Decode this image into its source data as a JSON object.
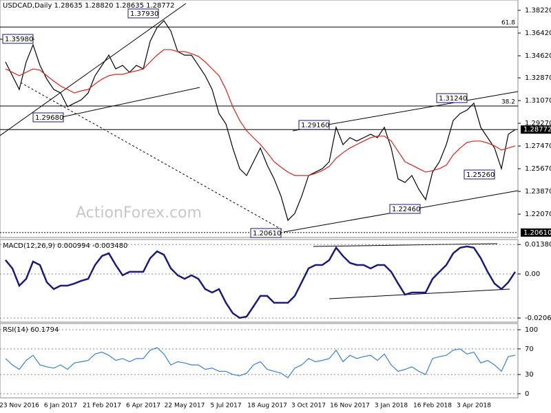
{
  "chart_data": [
    {
      "type": "line",
      "title": "USDCAD,Daily 1.28635 1.28820 1.28635 1.28772",
      "watermark": "ActionForex.com",
      "ylim": [
        1.2022,
        1.3904
      ],
      "yticks": [
        {
          "value": 1.3822,
          "label": "1.38220"
        },
        {
          "value": 1.3642,
          "label": "1.36420"
        },
        {
          "value": 1.3462,
          "label": "1.34620"
        },
        {
          "value": 1.3287,
          "label": "1.32870"
        },
        {
          "value": 1.3107,
          "label": "1.31070"
        },
        {
          "value": 1.2927,
          "label": "1.29270"
        },
        {
          "value": 1.2747,
          "label": "1.27470"
        },
        {
          "value": 1.2567,
          "label": "1.25670"
        },
        {
          "value": 1.2387,
          "label": "1.23870"
        },
        {
          "value": 1.2207,
          "label": "1.22070"
        }
      ],
      "levels": [
        {
          "value": 1.369,
          "label": "61.8"
        },
        {
          "value": 1.3064,
          "label": "38.2"
        }
      ],
      "price_labels": [
        1.28772,
        {
          "value": 1.2061,
          "label": "1.20610"
        }
      ],
      "annotations": [
        "1.35980",
        "1.37930",
        "1.29680",
        "1.31240",
        "1.29160",
        "1.25260",
        "1.22460",
        "1.20610"
      ],
      "series": [
        {
          "color": "#000000",
          "values": [
            1.3413,
            1.3304,
            1.3195,
            1.3413,
            1.3549,
            1.3386,
            1.3277,
            1.3195,
            1.3167,
            1.3058,
            1.3086,
            1.3113,
            1.3167,
            1.3304,
            1.3386,
            1.3467,
            1.3358,
            1.3386,
            1.3331,
            1.3386,
            1.3358,
            1.3577,
            1.3686,
            1.374,
            1.3658,
            1.3495,
            1.3467,
            1.3467,
            1.3386,
            1.3304,
            1.3195,
            1.3004,
            1.2922,
            1.2731,
            1.2567,
            1.2513,
            1.2622,
            1.2731,
            1.2595,
            1.2486,
            1.2349,
            1.2158,
            1.2213,
            1.2349,
            1.2513,
            1.254,
            1.2567,
            1.2622,
            1.2895,
            1.2758,
            1.2813,
            1.2786,
            1.2813,
            1.284,
            1.2813,
            1.2895,
            1.2731,
            1.2486,
            1.2458,
            1.2513,
            1.2404,
            1.2322,
            1.254,
            1.2622,
            1.2758,
            1.2949,
            1.3004,
            1.3031,
            1.3086,
            1.2895,
            1.2813,
            1.2731,
            1.2567,
            1.284,
            1.2877
          ]
        },
        {
          "color": "#e0201b",
          "values": [
            1.3358,
            1.3331,
            1.3304,
            1.3331,
            1.3358,
            1.3348,
            1.3304,
            1.3261,
            1.3222,
            1.3195,
            1.3167,
            1.3184,
            1.3195,
            1.3239,
            1.3277,
            1.3304,
            1.3315,
            1.3315,
            1.3331,
            1.3342,
            1.3358,
            1.3413,
            1.3467,
            1.3511,
            1.3511,
            1.3495,
            1.3495,
            1.3479,
            1.3457,
            1.3413,
            1.3358,
            1.3304,
            1.3195,
            1.3058,
            1.2949,
            1.2868,
            1.2813,
            1.2759,
            1.2694,
            1.2622,
            1.2579,
            1.254,
            1.2513,
            1.2513,
            1.2513,
            1.253,
            1.2552,
            1.2585,
            1.265,
            1.2694,
            1.2731,
            1.2759,
            1.2786,
            1.2813,
            1.2825,
            1.2825,
            1.2786,
            1.2705,
            1.2622,
            1.2595,
            1.2567,
            1.254,
            1.2552,
            1.2567,
            1.2595,
            1.2677,
            1.2731,
            1.2775,
            1.2786,
            1.2786,
            1.277,
            1.2748,
            1.2715,
            1.2731,
            1.2748
          ]
        }
      ]
    },
    {
      "type": "line",
      "title": "MACD(12,26,9) 0.000994 -0.003480",
      "ylim": [
        -0.02258,
        0.01613
      ],
      "yticks": [
        0.013802,
        {
          "value": 0,
          "label": "0.00"
        },
        -0.020648
      ],
      "series": [
        {
          "color": "#1a1a7a",
          "values": [
            0.0065,
            0.0026,
            -0.0055,
            -0.0023,
            0.0058,
            0.0042,
            -0.0039,
            -0.0071,
            -0.0055,
            -0.0055,
            -0.0045,
            -0.0032,
            -0.0023,
            0.0042,
            0.0084,
            0.0097,
            0.0042,
            -0.0006,
            0.001,
            0.001,
            0.001,
            0.0074,
            0.0106,
            0.009,
            0.0026,
            -0.0006,
            -0.0023,
            -0.0006,
            -0.0023,
            -0.0071,
            -0.0087,
            -0.0071,
            -0.0135,
            -0.0184,
            -0.0206,
            -0.02,
            -0.0152,
            -0.0103,
            -0.0103,
            -0.0135,
            -0.0135,
            -0.0135,
            -0.0103,
            -0.0039,
            0.0026,
            0.0042,
            0.0042,
            0.0065,
            0.0123,
            0.0084,
            0.0052,
            0.0042,
            0.0042,
            0.0026,
            0.0042,
            0.0042,
            0.001,
            -0.0045,
            -0.0097,
            -0.0087,
            -0.0087,
            -0.0087,
            -0.0023,
            0.001,
            0.0042,
            0.0097,
            0.0123,
            0.0129,
            0.0123,
            0.0074,
            0.001,
            -0.0045,
            -0.0071,
            -0.0039,
            0.001
          ]
        }
      ]
    },
    {
      "type": "line",
      "title": "RSI(14) 60.1794",
      "ylim": [
        -6.5,
        109.7
      ],
      "yticks": [
        100,
        70,
        30,
        0
      ],
      "categories": [
        null,
        null,
        "23 Nov 2016",
        null,
        null,
        null,
        null,
        null,
        "6 Jan 2017",
        null,
        null,
        null,
        null,
        null,
        "21 Feb 2017",
        null,
        null,
        null,
        null,
        null,
        "6 Apr 2017",
        null,
        null,
        null,
        null,
        null,
        "22 May 2017",
        null,
        null,
        null,
        null,
        null,
        "5 Jul 2017",
        null,
        null,
        null,
        null,
        null,
        "18 Aug 2017",
        null,
        null,
        null,
        null,
        null,
        "3 Oct 2017",
        null,
        null,
        null,
        null,
        null,
        "16 Nov 2017",
        null,
        null,
        null,
        null,
        null,
        "3 Jan 2018",
        null,
        null,
        null,
        null,
        null,
        "16 Feb 2018",
        null,
        null,
        null,
        null,
        null,
        "3 Apr 2018",
        null,
        null,
        null,
        null,
        null,
        null
      ],
      "series": [
        {
          "color": "#3a7fd0",
          "values": [
            55,
            45,
            38,
            52,
            60,
            45,
            42,
            40,
            45,
            38,
            48,
            50,
            52,
            62,
            65,
            60,
            52,
            55,
            50,
            55,
            55,
            68,
            72,
            62,
            45,
            50,
            48,
            45,
            45,
            38,
            40,
            35,
            35,
            30,
            28,
            32,
            45,
            50,
            38,
            35,
            32,
            25,
            40,
            45,
            55,
            50,
            52,
            55,
            68,
            50,
            60,
            55,
            58,
            60,
            52,
            62,
            45,
            35,
            38,
            42,
            35,
            30,
            55,
            58,
            60,
            68,
            70,
            62,
            65,
            48,
            52,
            45,
            35,
            58,
            60.1794
          ]
        }
      ]
    }
  ]
}
